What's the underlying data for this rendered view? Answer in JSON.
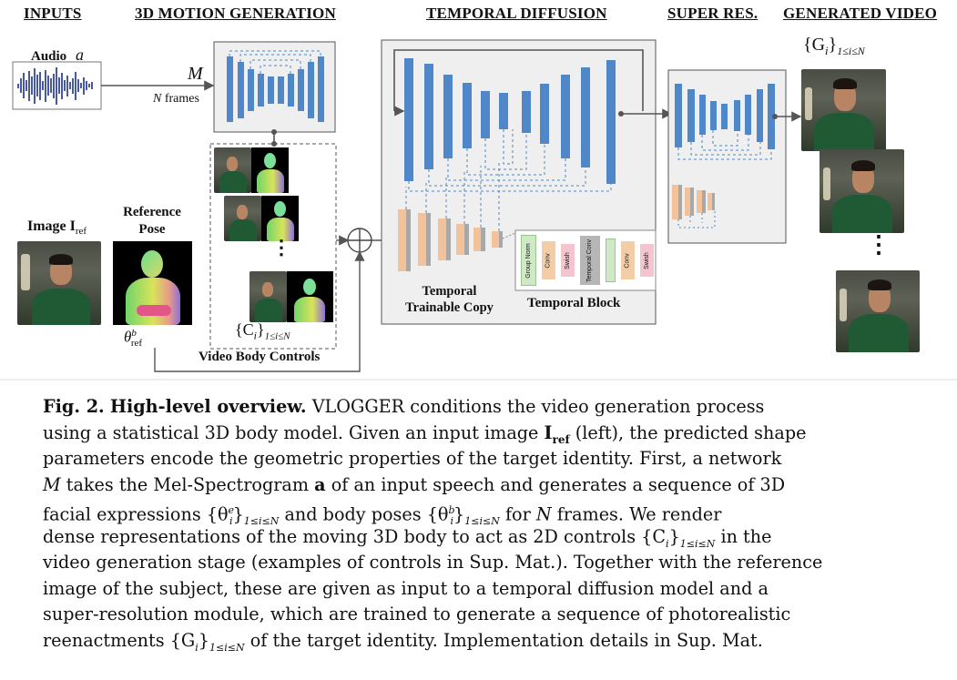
{
  "sections": {
    "inputs": "INPUTS",
    "motion": "3D MOTION GENERATION",
    "diffusion": "TEMPORAL DIFFUSION",
    "superres": "SUPER RES.",
    "generated": "GENERATED VIDEO"
  },
  "labels": {
    "audio": "Audio",
    "audio_sym": "a",
    "M": "M",
    "nframes_N": "N",
    "nframes_word": "frames",
    "image": "Image I",
    "image_sub": "ref",
    "ref_pose_1": "Reference",
    "ref_pose_2": "Pose",
    "theta": "θ",
    "theta_sup": "b",
    "theta_sub": "ref",
    "controls_set": "{C",
    "controls_sub": "i",
    "controls_range": "1≤i≤N",
    "video_body_controls": "Video Body Controls",
    "temporal_1": "Temporal",
    "temporal_2": "Trainable Copy",
    "temporal_block": "Temporal Block",
    "gen_set": "{G",
    "gen_sub": "i",
    "gen_range": "1≤i≤N",
    "dots": "⋮"
  },
  "block_items": [
    "Group Norm",
    "Conv",
    "Swish",
    "Temporal Conv",
    "Conv",
    "Swish"
  ],
  "colors": {
    "unet_blue": "#4f87c9",
    "copy_orange": "#f2c29b",
    "copy_gray": "#a8a8a8",
    "group_norm": "#cfe8c6",
    "conv": "#f3cda8",
    "swish": "#f4c5cf",
    "tconv": "#b6b6b6"
  },
  "caption": {
    "fig": "Fig. 2.",
    "title": "High-level overview.",
    "l1": "VLOGGER conditions the video generation process",
    "l2a": "using a statistical 3D body model. Given an input image",
    "l2b": "I",
    "l2c": "ref",
    "l2d": "(left), the predicted shape",
    "l3": "parameters encode the geometric properties of the target identity. First, a network",
    "l4a": "M",
    "l4b": "takes the Mel-Spectrogram",
    "l4c": "a",
    "l4d": "of an input speech and generates a sequence of 3D",
    "l5a": "facial expressions {θ",
    "l5b": "e",
    "l5c": "i",
    "l5d": "}",
    "l5e": "1≤i≤N",
    "l5f": "and body poses {θ",
    "l5g": "b",
    "l5h": "i",
    "l5i": "}",
    "l5j": "1≤i≤N",
    "l5k": "for",
    "l5l": "N",
    "l5m": "frames. We render",
    "l6a": "dense representations of the moving 3D body to act as 2D controls {C",
    "l6b": "i",
    "l6c": "}",
    "l6d": "1≤i≤N",
    "l6e": "in the",
    "l7": "video generation stage (examples of controls in Sup. Mat.). Together with the reference",
    "l8": "image of the subject, these are given as input to a temporal diffusion model and a",
    "l9": "super-resolution module, which are trained to generate a sequence of photorealistic",
    "l10a": "reenactments {G",
    "l10b": "i",
    "l10c": "}",
    "l10d": "1≤i≤N",
    "l10e": "of the target identity. Implementation details in Sup. Mat."
  }
}
